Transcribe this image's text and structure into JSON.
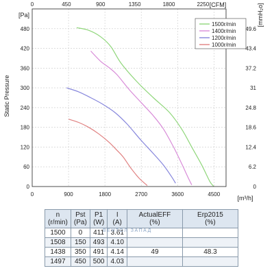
{
  "chart_data": {
    "type": "line",
    "xlabel": "[m³/h]",
    "x_top_label": "[CFM]",
    "ylabel": "Static Pressure",
    "y_left_unit": "[Pa]",
    "y_right_unit": "[mmH₂o]",
    "xlim": [
      0,
      4800
    ],
    "ylim": [
      0,
      540
    ],
    "x_ticks": [
      "0",
      "900",
      "1800",
      "2700",
      "3600",
      "4500"
    ],
    "x_ticks_values": [
      0,
      900,
      1800,
      2700,
      3600,
      4500
    ],
    "x_top_ticks": [
      "0",
      "450",
      "900",
      "1350",
      "1800",
      "2250"
    ],
    "x_top_ticks_values": [
      0,
      450,
      900,
      1350,
      1800,
      2250
    ],
    "y_ticks": [
      "0",
      "60",
      "120",
      "180",
      "240",
      "300",
      "360",
      "420",
      "480"
    ],
    "y_ticks_values": [
      0,
      60,
      120,
      180,
      240,
      300,
      360,
      420,
      480
    ],
    "y_right_ticks": [
      "0",
      "6.2",
      "12.4",
      "18.6",
      "24.8",
      "31",
      "37.2",
      "43.4",
      "49.6"
    ],
    "grid": true,
    "legend_position": "top-right",
    "series": [
      {
        "name": "1500r/min",
        "color": "#8fd67a",
        "points": [
          [
            1100,
            483
          ],
          [
            1400,
            475
          ],
          [
            1700,
            455
          ],
          [
            1950,
            425
          ],
          [
            2200,
            375
          ],
          [
            2600,
            318
          ],
          [
            3000,
            270
          ],
          [
            3400,
            225
          ],
          [
            3700,
            175
          ],
          [
            3950,
            120
          ],
          [
            4200,
            65
          ],
          [
            4400,
            15
          ],
          [
            4500,
            0
          ]
        ]
      },
      {
        "name": "1400r/min",
        "color": "#d88bd8",
        "points": [
          [
            1450,
            412
          ],
          [
            1700,
            380
          ],
          [
            1900,
            362
          ],
          [
            2100,
            340
          ],
          [
            2400,
            295
          ],
          [
            2700,
            255
          ],
          [
            3000,
            215
          ],
          [
            3250,
            175
          ],
          [
            3500,
            120
          ],
          [
            3700,
            70
          ],
          [
            3850,
            30
          ],
          [
            3950,
            5
          ]
        ]
      },
      {
        "name": "1200r/min",
        "color": "#8686dc",
        "points": [
          [
            850,
            300
          ],
          [
            1150,
            288
          ],
          [
            1450,
            270
          ],
          [
            1750,
            250
          ],
          [
            2050,
            225
          ],
          [
            2350,
            190
          ],
          [
            2700,
            140
          ],
          [
            3000,
            100
          ],
          [
            3250,
            65
          ],
          [
            3450,
            30
          ],
          [
            3550,
            10
          ]
        ]
      },
      {
        "name": "1000r/min",
        "color": "#e08080",
        "points": [
          [
            900,
            205
          ],
          [
            1150,
            195
          ],
          [
            1400,
            180
          ],
          [
            1650,
            160
          ],
          [
            1900,
            135
          ],
          [
            2100,
            110
          ],
          [
            2250,
            90
          ],
          [
            2450,
            55
          ],
          [
            2650,
            25
          ],
          [
            2850,
            3
          ]
        ]
      }
    ]
  },
  "table": {
    "headers": [
      {
        "line1": "n",
        "line2": "(r/min)"
      },
      {
        "line1": "Pst",
        "line2": "(Pa)"
      },
      {
        "line1": "P1",
        "line2": "(W)"
      },
      {
        "line1": "I",
        "line2": "(A)"
      },
      {
        "line1": "ActualEFF",
        "line2": "(%)"
      },
      {
        "line1": "Erp2015",
        "line2": "(%)"
      }
    ],
    "rows": [
      [
        "1500",
        "0",
        "411",
        "3.61",
        "",
        ""
      ],
      [
        "1508",
        "150",
        "493",
        "4.10",
        "",
        ""
      ],
      [
        "1438",
        "350",
        "491",
        "4.14",
        "49",
        "48.3"
      ],
      [
        "1497",
        "450",
        "500",
        "4.03",
        "",
        ""
      ]
    ]
  },
  "watermark": "ВЕНТОЛ ЗАПАД"
}
